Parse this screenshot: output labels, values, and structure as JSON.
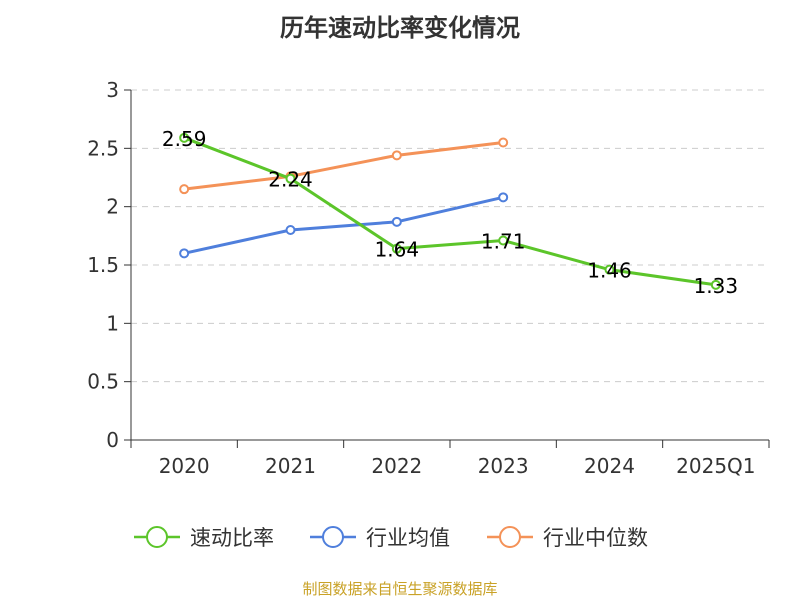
{
  "chart_data": {
    "type": "line",
    "title": "历年速动比率变化情况",
    "categories": [
      "2020",
      "2021",
      "2022",
      "2023",
      "2024",
      "2025Q1"
    ],
    "ylim": [
      0,
      3
    ],
    "yticks": [
      "0",
      "0.5",
      "1",
      "1.5",
      "2",
      "2.5",
      "3"
    ],
    "ytick_values": [
      0,
      0.5,
      1,
      1.5,
      2,
      2.5,
      3
    ],
    "grid": true,
    "legend_position": "bottom",
    "series": [
      {
        "name": "速动比率",
        "color": "#5cc52a",
        "values": [
          2.59,
          2.24,
          1.64,
          1.71,
          1.46,
          1.33
        ],
        "labels": [
          "2.59",
          "2.24",
          "1.64",
          "1.71",
          "1.46",
          "1.33"
        ]
      },
      {
        "name": "行业均值",
        "color": "#4f7fdc",
        "values": [
          1.6,
          1.8,
          1.87,
          2.08,
          null,
          null
        ]
      },
      {
        "name": "行业中位数",
        "color": "#f49258",
        "values": [
          2.15,
          2.26,
          2.44,
          2.55,
          null,
          null
        ]
      }
    ]
  },
  "source": "制图数据来自恒生聚源数据库"
}
